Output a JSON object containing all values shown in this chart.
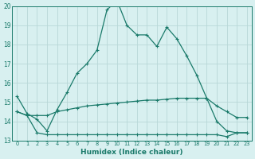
{
  "xlabel": "Humidex (Indice chaleur)",
  "x": [
    0,
    1,
    2,
    3,
    4,
    5,
    6,
    7,
    8,
    9,
    10,
    11,
    12,
    13,
    14,
    15,
    16,
    17,
    18,
    19,
    20,
    21,
    22,
    23
  ],
  "line1": [
    15.3,
    14.4,
    14.1,
    13.5,
    14.6,
    15.5,
    16.5,
    17.0,
    17.7,
    19.8,
    20.3,
    19.0,
    18.5,
    18.5,
    17.9,
    18.9,
    18.3,
    17.4,
    16.4,
    15.2,
    14.8,
    14.5,
    14.2,
    14.2
  ],
  "line2": [
    14.5,
    14.3,
    14.3,
    14.3,
    14.5,
    14.6,
    14.7,
    14.8,
    14.85,
    14.9,
    14.95,
    15.0,
    15.05,
    15.1,
    15.1,
    15.15,
    15.2,
    15.2,
    15.2,
    15.2,
    14.0,
    13.5,
    13.4,
    13.4
  ],
  "line3": [
    14.5,
    14.3,
    13.4,
    13.3,
    13.3,
    13.3,
    13.3,
    13.3,
    13.3,
    13.3,
    13.3,
    13.3,
    13.3,
    13.3,
    13.3,
    13.3,
    13.3,
    13.3,
    13.3,
    13.3,
    13.3,
    13.2,
    13.4,
    13.4
  ],
  "color": "#1a7a6a",
  "bg_color": "#d8f0f0",
  "grid_color": "#b8d8d8",
  "ylim": [
    13,
    20
  ],
  "xlim": [
    -0.5,
    23.5
  ],
  "yticks": [
    13,
    14,
    15,
    16,
    17,
    18,
    19,
    20
  ],
  "xticks": [
    0,
    1,
    2,
    3,
    4,
    5,
    6,
    7,
    8,
    9,
    10,
    11,
    12,
    13,
    14,
    15,
    16,
    17,
    18,
    19,
    20,
    21,
    22,
    23
  ]
}
